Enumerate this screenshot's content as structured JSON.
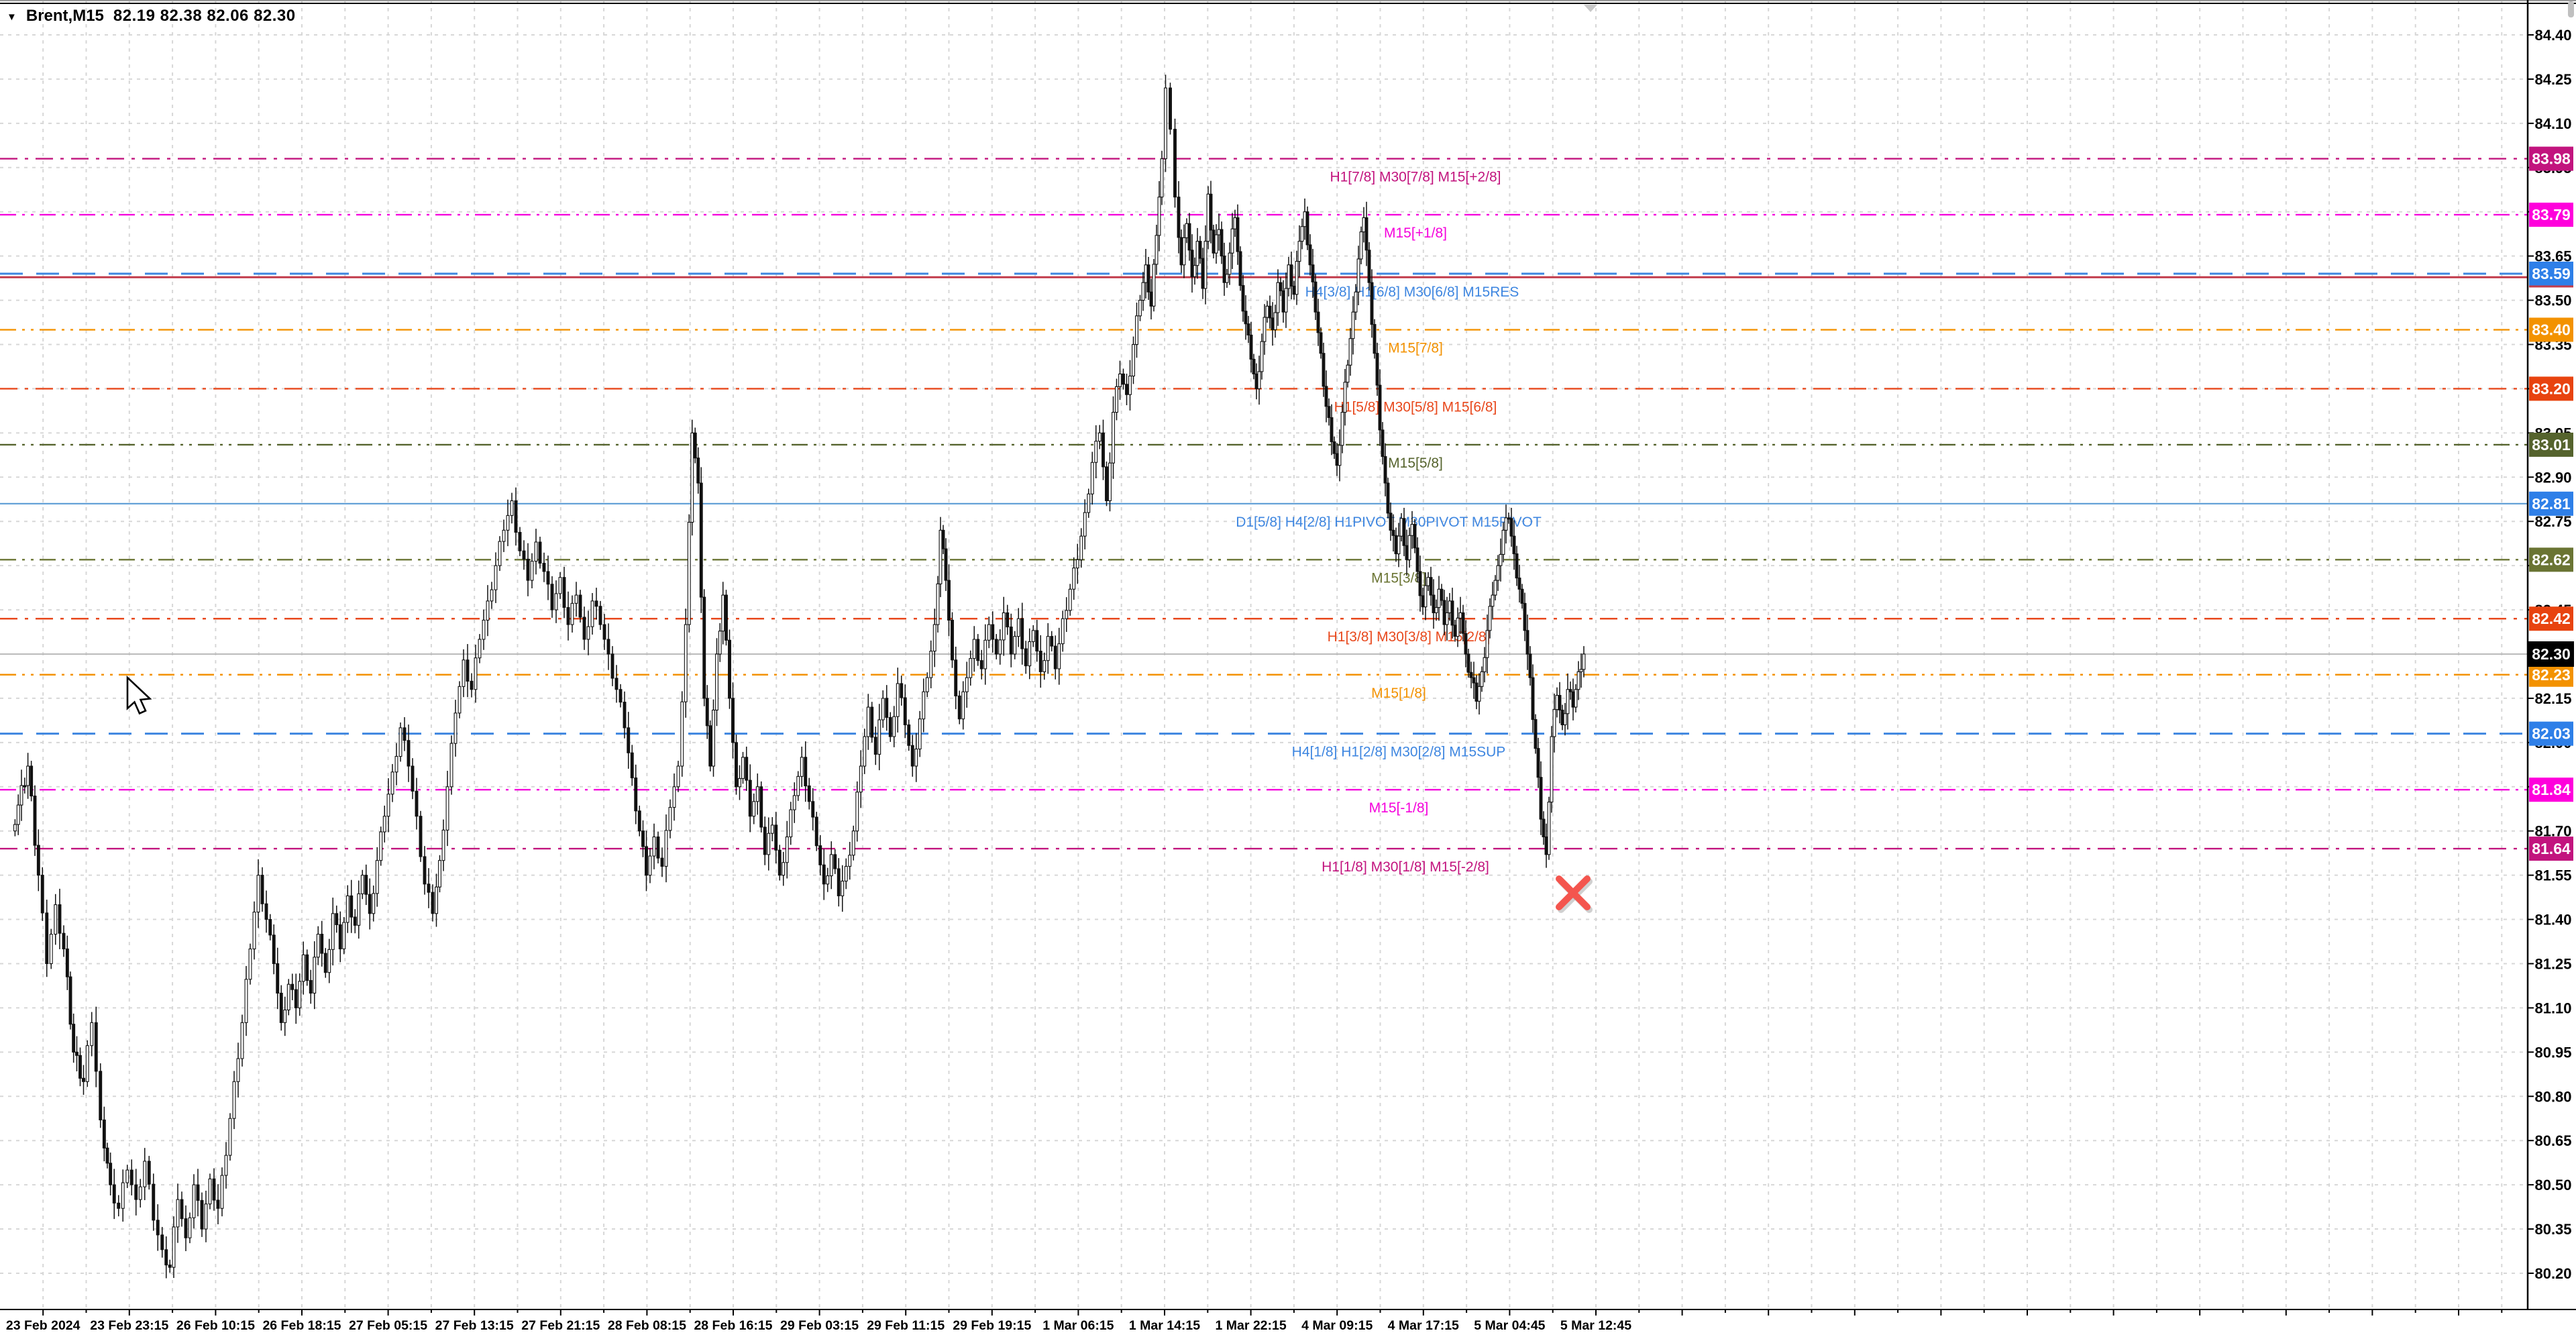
{
  "window": {
    "dropdown_icon": "▼",
    "symbol_period": "Brent,M15",
    "ohlc_text": "82.19 82.38 82.06 82.30",
    "open": "82.19",
    "high": "82.38",
    "low": "82.06",
    "close": "82.30"
  },
  "chart_data": {
    "type": "candlestick",
    "title": "Brent,M15",
    "ylim": [
      80.125,
      84.475
    ],
    "price_step": 0.15,
    "grid": true,
    "y_ticks": [
      "84.40",
      "84.25",
      "84.10",
      "83.95",
      "83.80",
      "83.65",
      "83.50",
      "83.35",
      "83.20",
      "83.05",
      "82.90",
      "82.75",
      "82.60",
      "82.45",
      "82.30",
      "82.15",
      "82.00",
      "81.85",
      "81.70",
      "81.55",
      "81.40",
      "81.25",
      "81.10",
      "80.95",
      "80.80",
      "80.65",
      "80.50",
      "80.35",
      "80.20"
    ],
    "x_ticks": [
      "23 Feb 2024",
      "23 Feb 23:15",
      "26 Feb 10:15",
      "26 Feb 18:15",
      "27 Feb 05:15",
      "27 Feb 13:15",
      "27 Feb 21:15",
      "28 Feb 08:15",
      "28 Feb 16:15",
      "29 Feb 03:15",
      "29 Feb 11:15",
      "29 Feb 19:15",
      "1 Mar 06:15",
      "1 Mar 14:15",
      "1 Mar 22:15",
      "4 Mar 09:15",
      "4 Mar 17:15",
      "5 Mar 04:45",
      "5 Mar 12:45"
    ],
    "levels": [
      {
        "price": 83.98,
        "label": "H1[7/8] M30[7/8] M15[+2/8]",
        "color": "#C2147E",
        "line_color": "#C2147E",
        "box_bg": "#C2147E",
        "style": "dashdot",
        "width": 2.4,
        "box_text": "83.98",
        "label_x": 2110
      },
      {
        "price": 83.79,
        "label": "M15[+1/8]",
        "color": "#F500DC",
        "line_color": "#F500DC",
        "box_bg": "#FF00DC",
        "style": "dashdotdot",
        "width": 2.4,
        "box_text": "83.79",
        "label_x": 2110
      },
      {
        "price": 83.59,
        "label": "H4[3/8] H1[6/8] M30[6/8] M15RES",
        "color": "#3E86E0",
        "line_color": "#3E86E0",
        "box_bg": "#2E7FE8",
        "style": "longdash",
        "width": 3,
        "box_text": "83.59",
        "box_underline": "#C23B4B",
        "label_x": 2105
      },
      {
        "price": 83.4,
        "label": "M15[7/8]",
        "color": "#F39200",
        "line_color": "#F39200",
        "box_bg": "#F39200",
        "style": "dashdotdot",
        "width": 2.4,
        "box_text": "83.40",
        "label_x": 2110
      },
      {
        "price": 83.2,
        "label": "H1[5/8] M30[5/8] M15[6/8]",
        "color": "#E8481C",
        "line_color": "#E8481C",
        "box_bg": "#E8430F",
        "style": "dashdot",
        "width": 2.4,
        "box_text": "83.20",
        "label_x": 2110
      },
      {
        "price": 83.01,
        "label": "M15[5/8]",
        "color": "#55632D",
        "line_color": "#55632D",
        "box_bg": "#55632D",
        "style": "dashdotdot",
        "width": 2.4,
        "box_text": "83.01",
        "label_x": 2110
      },
      {
        "price": 82.81,
        "label": "D1[5/8] H4[2/8] H1PIVOT M30PIVOT M15PIVOT",
        "color": "#3E86E0",
        "line_color": "#5B9BD5",
        "box_bg": "#2E7FE8",
        "style": "solid",
        "width": 2.2,
        "box_text": "82.81",
        "label_x": 2070
      },
      {
        "price": 82.62,
        "label": "M15[3/8]",
        "color": "#6A7433",
        "line_color": "#6A7433",
        "box_bg": "#6A7433",
        "style": "dashdotdot",
        "width": 2.4,
        "box_text": "82.62",
        "label_x": 2085
      },
      {
        "price": 82.42,
        "label": "H1[3/8] M30[3/8] M15[2/8]",
        "color": "#E8481C",
        "line_color": "#E8481C",
        "box_bg": "#E8430F",
        "style": "dashdot",
        "width": 2.4,
        "box_text": "82.42",
        "label_x": 2100
      },
      {
        "price": 82.23,
        "label": "M15[1/8]",
        "color": "#F39200",
        "line_color": "#F39200",
        "box_bg": "#F39200",
        "style": "dashdotdot",
        "width": 2.4,
        "box_text": "82.23",
        "label_x": 2085
      },
      {
        "price": 82.03,
        "label": "H4[1/8] H1[2/8] M30[2/8] M15SUP",
        "color": "#3E86E0",
        "line_color": "#3E86E0",
        "box_bg": "#2E7FE8",
        "style": "longdash",
        "width": 3,
        "box_text": "82.03",
        "label_x": 2085
      },
      {
        "price": 81.84,
        "label": "M15[-1/8]",
        "color": "#F500DC",
        "line_color": "#F500DC",
        "box_bg": "#FF00DC",
        "style": "dashdotdot",
        "width": 2.4,
        "box_text": "81.84",
        "label_x": 2085
      },
      {
        "price": 81.64,
        "label": "H1[1/8] M30[1/8] M15[-2/8]",
        "color": "#C2147E",
        "line_color": "#C2147E",
        "box_bg": "#C2147E",
        "style": "dashdot",
        "width": 2.4,
        "box_text": "81.64",
        "label_x": 2095
      }
    ],
    "aux_lines": [
      {
        "price": 83.578,
        "color": "#C23B4B",
        "style": "solid",
        "width": 3
      }
    ],
    "current_price": {
      "value": "82.30",
      "price": 82.3,
      "line_color": "#BBBBBB",
      "box_bg": "#000000",
      "text_color": "#FFFFFF"
    },
    "sell_marker": {
      "glyph": "cross",
      "x": 2345,
      "price": 81.49,
      "color": "#F4554E"
    },
    "shift_marker_x": 2371,
    "cursor": {
      "x": 190,
      "y": 1010
    },
    "price_path": [
      [
        20,
        81.7
      ],
      [
        44,
        81.92
      ],
      [
        60,
        81.55
      ],
      [
        73,
        81.25
      ],
      [
        86,
        81.45
      ],
      [
        98,
        81.3
      ],
      [
        112,
        80.95
      ],
      [
        127,
        80.85
      ],
      [
        140,
        81.05
      ],
      [
        153,
        80.72
      ],
      [
        167,
        80.5
      ],
      [
        180,
        80.42
      ],
      [
        193,
        80.55
      ],
      [
        206,
        80.45
      ],
      [
        219,
        80.58
      ],
      [
        232,
        80.38
      ],
      [
        245,
        80.28
      ],
      [
        256,
        80.22
      ],
      [
        268,
        80.45
      ],
      [
        280,
        80.32
      ],
      [
        292,
        80.5
      ],
      [
        304,
        80.35
      ],
      [
        316,
        80.52
      ],
      [
        328,
        80.42
      ],
      [
        340,
        80.6
      ],
      [
        352,
        80.85
      ],
      [
        364,
        81.05
      ],
      [
        376,
        81.3
      ],
      [
        388,
        81.55
      ],
      [
        400,
        81.4
      ],
      [
        411,
        81.25
      ],
      [
        422,
        81.05
      ],
      [
        433,
        81.18
      ],
      [
        444,
        81.1
      ],
      [
        455,
        81.28
      ],
      [
        466,
        81.15
      ],
      [
        477,
        81.35
      ],
      [
        488,
        81.22
      ],
      [
        499,
        81.42
      ],
      [
        510,
        81.3
      ],
      [
        521,
        81.48
      ],
      [
        532,
        81.38
      ],
      [
        543,
        81.55
      ],
      [
        554,
        81.42
      ],
      [
        565,
        81.6
      ],
      [
        576,
        81.75
      ],
      [
        588,
        81.9
      ],
      [
        600,
        82.05
      ],
      [
        612,
        81.92
      ],
      [
        624,
        81.75
      ],
      [
        636,
        81.52
      ],
      [
        648,
        81.42
      ],
      [
        658,
        81.6
      ],
      [
        670,
        81.85
      ],
      [
        682,
        82.1
      ],
      [
        694,
        82.28
      ],
      [
        706,
        82.18
      ],
      [
        718,
        82.35
      ],
      [
        730,
        82.48
      ],
      [
        742,
        82.6
      ],
      [
        754,
        82.72
      ],
      [
        766,
        82.82
      ],
      [
        778,
        82.65
      ],
      [
        790,
        82.55
      ],
      [
        802,
        82.68
      ],
      [
        814,
        82.58
      ],
      [
        826,
        82.45
      ],
      [
        838,
        82.56
      ],
      [
        850,
        82.4
      ],
      [
        862,
        82.5
      ],
      [
        874,
        82.35
      ],
      [
        886,
        82.48
      ],
      [
        898,
        82.4
      ],
      [
        910,
        82.3
      ],
      [
        922,
        82.18
      ],
      [
        934,
        82.05
      ],
      [
        945,
        81.88
      ],
      [
        956,
        81.7
      ],
      [
        966,
        81.55
      ],
      [
        978,
        81.68
      ],
      [
        990,
        81.58
      ],
      [
        1002,
        81.78
      ],
      [
        1014,
        81.92
      ],
      [
        1025,
        82.4
      ],
      [
        1034,
        83.05
      ],
      [
        1043,
        82.88
      ],
      [
        1052,
        82.15
      ],
      [
        1061,
        81.92
      ],
      [
        1071,
        82.3
      ],
      [
        1080,
        82.5
      ],
      [
        1090,
        82.15
      ],
      [
        1100,
        81.85
      ],
      [
        1110,
        81.95
      ],
      [
        1121,
        81.75
      ],
      [
        1132,
        81.85
      ],
      [
        1143,
        81.62
      ],
      [
        1154,
        81.72
      ],
      [
        1165,
        81.55
      ],
      [
        1176,
        81.68
      ],
      [
        1187,
        81.82
      ],
      [
        1198,
        81.95
      ],
      [
        1209,
        81.8
      ],
      [
        1220,
        81.65
      ],
      [
        1231,
        81.52
      ],
      [
        1242,
        81.62
      ],
      [
        1253,
        81.48
      ],
      [
        1264,
        81.58
      ],
      [
        1275,
        81.7
      ],
      [
        1286,
        81.92
      ],
      [
        1297,
        82.12
      ],
      [
        1308,
        81.96
      ],
      [
        1319,
        82.15
      ],
      [
        1330,
        82.02
      ],
      [
        1341,
        82.2
      ],
      [
        1352,
        82.06
      ],
      [
        1363,
        81.92
      ],
      [
        1374,
        82.08
      ],
      [
        1385,
        82.22
      ],
      [
        1396,
        82.4
      ],
      [
        1404,
        82.72
      ],
      [
        1412,
        82.55
      ],
      [
        1422,
        82.28
      ],
      [
        1433,
        82.08
      ],
      [
        1444,
        82.22
      ],
      [
        1455,
        82.35
      ],
      [
        1466,
        82.25
      ],
      [
        1477,
        82.4
      ],
      [
        1488,
        82.3
      ],
      [
        1499,
        82.44
      ],
      [
        1510,
        82.3
      ],
      [
        1521,
        82.42
      ],
      [
        1532,
        82.26
      ],
      [
        1543,
        82.38
      ],
      [
        1554,
        82.24
      ],
      [
        1565,
        82.36
      ],
      [
        1576,
        82.25
      ],
      [
        1587,
        82.42
      ],
      [
        1598,
        82.52
      ],
      [
        1609,
        82.62
      ],
      [
        1620,
        82.78
      ],
      [
        1631,
        82.95
      ],
      [
        1642,
        83.05
      ],
      [
        1652,
        82.82
      ],
      [
        1662,
        83.12
      ],
      [
        1672,
        83.25
      ],
      [
        1682,
        83.18
      ],
      [
        1692,
        83.35
      ],
      [
        1702,
        83.5
      ],
      [
        1710,
        83.62
      ],
      [
        1718,
        83.48
      ],
      [
        1726,
        83.72
      ],
      [
        1734,
        83.98
      ],
      [
        1741,
        84.22
      ],
      [
        1748,
        84.08
      ],
      [
        1755,
        83.85
      ],
      [
        1763,
        83.62
      ],
      [
        1771,
        83.76
      ],
      [
        1779,
        83.58
      ],
      [
        1787,
        83.7
      ],
      [
        1795,
        83.54
      ],
      [
        1803,
        83.86
      ],
      [
        1811,
        83.66
      ],
      [
        1819,
        83.74
      ],
      [
        1827,
        83.56
      ],
      [
        1835,
        83.66
      ],
      [
        1843,
        83.78
      ],
      [
        1851,
        83.55
      ],
      [
        1859,
        83.42
      ],
      [
        1867,
        83.3
      ],
      [
        1875,
        83.2
      ],
      [
        1883,
        83.36
      ],
      [
        1891,
        83.48
      ],
      [
        1899,
        83.4
      ],
      [
        1907,
        83.56
      ],
      [
        1915,
        83.46
      ],
      [
        1923,
        83.62
      ],
      [
        1931,
        83.52
      ],
      [
        1939,
        83.7
      ],
      [
        1947,
        83.8
      ],
      [
        1955,
        83.62
      ],
      [
        1963,
        83.46
      ],
      [
        1971,
        83.32
      ],
      [
        1979,
        83.14
      ],
      [
        1987,
        83.02
      ],
      [
        1995,
        82.94
      ],
      [
        2003,
        83.12
      ],
      [
        2011,
        83.28
      ],
      [
        2019,
        83.46
      ],
      [
        2027,
        83.64
      ],
      [
        2035,
        83.78
      ],
      [
        2043,
        83.56
      ],
      [
        2051,
        83.32
      ],
      [
        2059,
        83.06
      ],
      [
        2067,
        82.88
      ],
      [
        2075,
        82.72
      ],
      [
        2083,
        82.64
      ],
      [
        2091,
        82.76
      ],
      [
        2099,
        82.62
      ],
      [
        2107,
        82.74
      ],
      [
        2115,
        82.58
      ],
      [
        2123,
        82.46
      ],
      [
        2131,
        82.56
      ],
      [
        2139,
        82.44
      ],
      [
        2147,
        82.52
      ],
      [
        2155,
        82.4
      ],
      [
        2163,
        82.48
      ],
      [
        2171,
        82.36
      ],
      [
        2179,
        82.44
      ],
      [
        2187,
        82.3
      ],
      [
        2195,
        82.22
      ],
      [
        2203,
        82.14
      ],
      [
        2211,
        82.24
      ],
      [
        2219,
        82.38
      ],
      [
        2227,
        82.5
      ],
      [
        2235,
        82.6
      ],
      [
        2243,
        82.72
      ],
      [
        2251,
        82.76
      ],
      [
        2259,
        82.64
      ],
      [
        2267,
        82.52
      ],
      [
        2275,
        82.38
      ],
      [
        2283,
        82.22
      ],
      [
        2291,
        81.98
      ],
      [
        2299,
        81.74
      ],
      [
        2307,
        81.62
      ],
      [
        2315,
        82.02
      ],
      [
        2323,
        82.16
      ],
      [
        2331,
        82.06
      ],
      [
        2339,
        82.18
      ],
      [
        2347,
        82.12
      ],
      [
        2355,
        82.24
      ],
      [
        2363,
        82.3
      ]
    ]
  }
}
